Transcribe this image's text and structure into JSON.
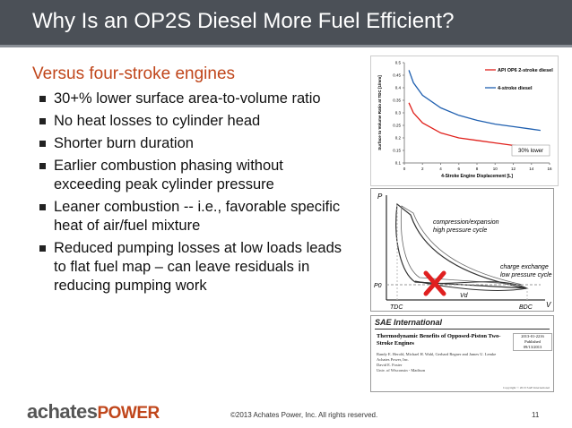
{
  "header": {
    "title": "Why Is an OP2S Diesel More Fuel Efficient?"
  },
  "body": {
    "heading": "Versus four-stroke engines",
    "bullets": [
      "30+% lower surface area-to-volume ratio",
      "No heat losses to cylinder head",
      "Shorter burn duration",
      "Earlier combustion phasing without exceeding peak cylinder pressure",
      "Leaner combustion -- i.e., favorable specific heat of air/fuel mixture",
      "Reduced pumping losses at low loads leads to flat fuel map – can leave residuals in reducing pumping work"
    ]
  },
  "chart_data": {
    "type": "line",
    "xlabel": "4-Stroke Engine Displacement  [L]",
    "ylabel": "Surface to Volume Ratio at TDC [1/mm]",
    "x": [
      0.5,
      1,
      2,
      4,
      6,
      8,
      10,
      12,
      14,
      15
    ],
    "series": [
      {
        "name": "API OP6 2-stroke diesel",
        "color": "#e0201b",
        "values": [
          0.34,
          0.3,
          0.26,
          0.22,
          0.2,
          0.19,
          0.18,
          0.17,
          0.165,
          0.16
        ]
      },
      {
        "name": "4-stroke diesel",
        "color": "#2060b0",
        "values": [
          0.47,
          0.42,
          0.37,
          0.32,
          0.29,
          0.27,
          0.255,
          0.245,
          0.235,
          0.23
        ]
      }
    ],
    "xlim": [
      0,
      16
    ],
    "xticks": [
      0,
      2,
      4,
      6,
      8,
      10,
      12,
      14,
      16
    ],
    "ylim": [
      0.1,
      0.5
    ],
    "yticks": [
      0.1,
      0.15,
      0.2,
      0.25,
      0.3,
      0.35,
      0.4,
      0.45,
      0.5
    ],
    "annotation": "30% lower"
  },
  "pv_diagram": {
    "p_axis": "P",
    "v_axis": "V",
    "high_label": [
      "compression/expansion",
      "high pressure cycle"
    ],
    "low_label": [
      "charge exchange",
      "low pressure cycle"
    ],
    "p0": "P0",
    "vd": "Vd",
    "tdc": "TDC",
    "bdc": "BDC"
  },
  "paper": {
    "publisher": "SAE International",
    "number": "2013-01-2216",
    "status": "Published",
    "date": "09/13/2013",
    "title": "Thermodynamic Benefits of Opposed-Piston Two-Stroke Engines",
    "authors": "Randy E. Herold, Michael H. Wahl, Gerhard Regner and James U. Lemke",
    "affil1": "Achates Power, Inc.",
    "author2": "David E. Foster",
    "affil2": "Univ. of Wisconsin - Madison",
    "copyright": "Copyright © 2013 SAE International"
  },
  "footer": {
    "logo_a": "achates",
    "logo_b": "POWER",
    "copyright": "©2013 Achates Power, Inc. All rights reserved.",
    "page": "11"
  }
}
